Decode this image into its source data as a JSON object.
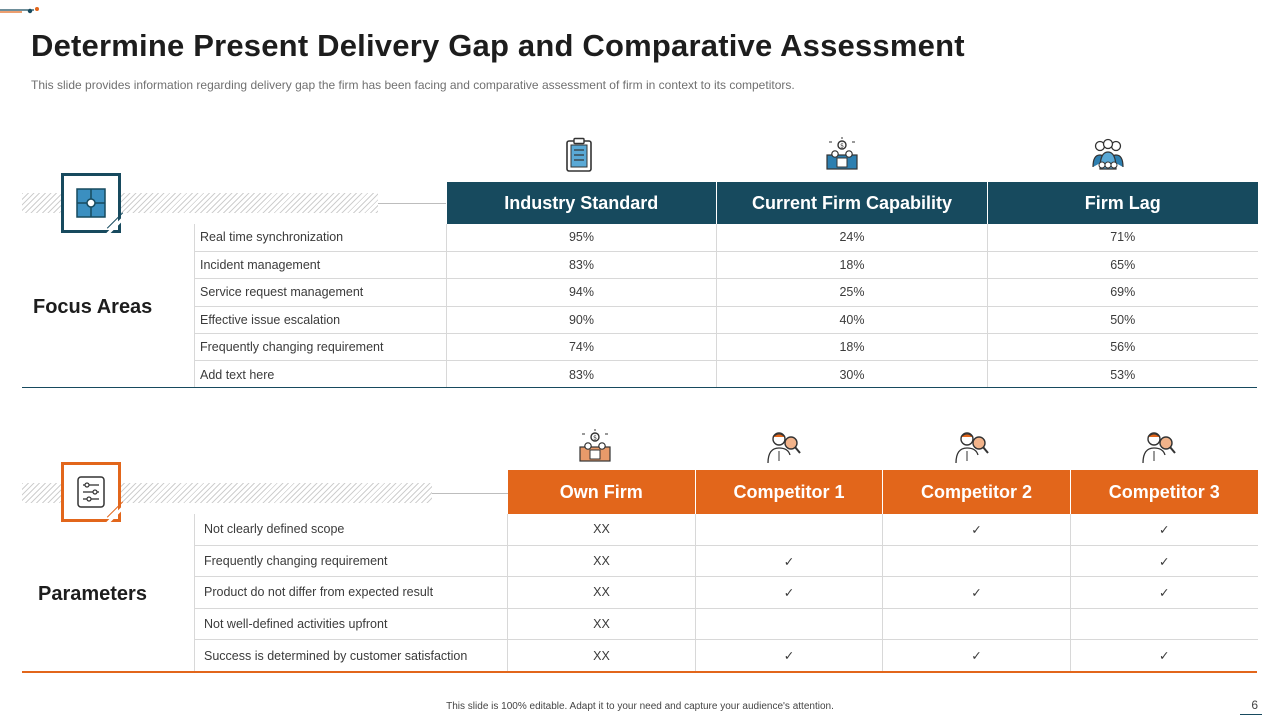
{
  "header": {
    "title": "Determine Present Delivery Gap and Comparative Assessment",
    "subtitle": "This slide provides  information  regarding  delivery  gap  the firm  has  been facing  and comparative  assessment of firm  in context to its competitors."
  },
  "focus": {
    "label": "Focus Areas",
    "columns": [
      "Industry Standard",
      "Current Firm Capability",
      "Firm Lag"
    ],
    "column_icons": [
      "clipboard-icon",
      "team-presentation-icon",
      "group-people-icon"
    ],
    "rows": [
      {
        "label": "Real time synchronization",
        "values": [
          "95%",
          "24%",
          "71%"
        ]
      },
      {
        "label": "Incident management",
        "values": [
          "83%",
          "18%",
          "65%"
        ]
      },
      {
        "label": "Service request management",
        "values": [
          "94%",
          "25%",
          "69%"
        ]
      },
      {
        "label": "Effective issue escalation",
        "values": [
          "90%",
          "40%",
          "50%"
        ]
      },
      {
        "label": "Frequently changing requirement",
        "values": [
          "74%",
          "18%",
          "56%"
        ]
      },
      {
        "label": "Add text here",
        "values": [
          "83%",
          "30%",
          "53%"
        ]
      }
    ]
  },
  "params": {
    "label": "Parameters",
    "columns": [
      "Own Firm",
      "Competitor 1",
      "Competitor 2",
      "Competitor 3"
    ],
    "column_icons": [
      "team-presentation-icon",
      "person-search-icon",
      "person-search-icon",
      "person-search-icon"
    ],
    "rows": [
      {
        "label": "Not clearly defined  scope",
        "values": [
          "XX",
          "",
          "✓",
          "✓"
        ]
      },
      {
        "label": "Frequently changing requirement",
        "values": [
          "XX",
          "✓",
          "",
          "✓"
        ]
      },
      {
        "label": "Product  do  not differ  from  expected result",
        "values": [
          "XX",
          "✓",
          "✓",
          "✓"
        ]
      },
      {
        "label": "Not well-defined  activities upfront",
        "values": [
          "XX",
          "",
          "",
          ""
        ]
      },
      {
        "label": "Success is determined  by customer satisfaction",
        "values": [
          "XX",
          "✓",
          "✓",
          "✓"
        ]
      }
    ]
  },
  "footer": {
    "note": "This slide is 100% editable.  Adapt it to your need and capture your audience's attention.",
    "page": "6"
  },
  "colors": {
    "teal": "#174a5e",
    "orange": "#e2661b"
  }
}
